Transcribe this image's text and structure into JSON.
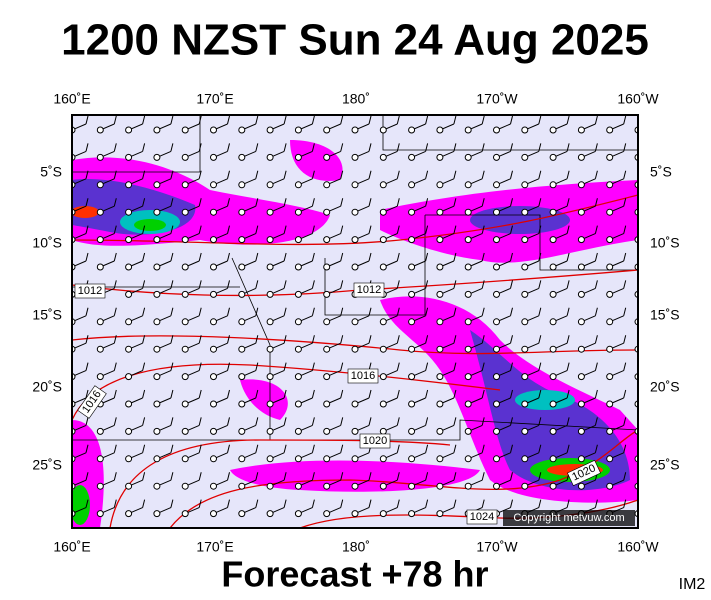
{
  "header": {
    "title": "1200 NZST Sun 24 Aug 2025"
  },
  "map": {
    "top_labels": [
      "160˚E",
      "170˚E",
      "180˚",
      "170˚W",
      "160˚W"
    ],
    "bottom_labels": [
      "160˚E",
      "170˚E",
      "180˚",
      "170˚W",
      "160˚W"
    ],
    "left_labels": [
      "5˚S",
      "10˚S",
      "15˚S",
      "20˚S",
      "25˚S"
    ],
    "right_labels": [
      "5˚S",
      "10˚S",
      "15˚S",
      "20˚S",
      "25˚S"
    ],
    "isobar_labels": [
      "1012",
      "1012",
      "1016",
      "1016",
      "1020",
      "1020",
      "1024"
    ],
    "copyright": "Copyright metvuw.com"
  },
  "footer": {
    "forecast": "Forecast +78 hr",
    "id": "IM2"
  }
}
